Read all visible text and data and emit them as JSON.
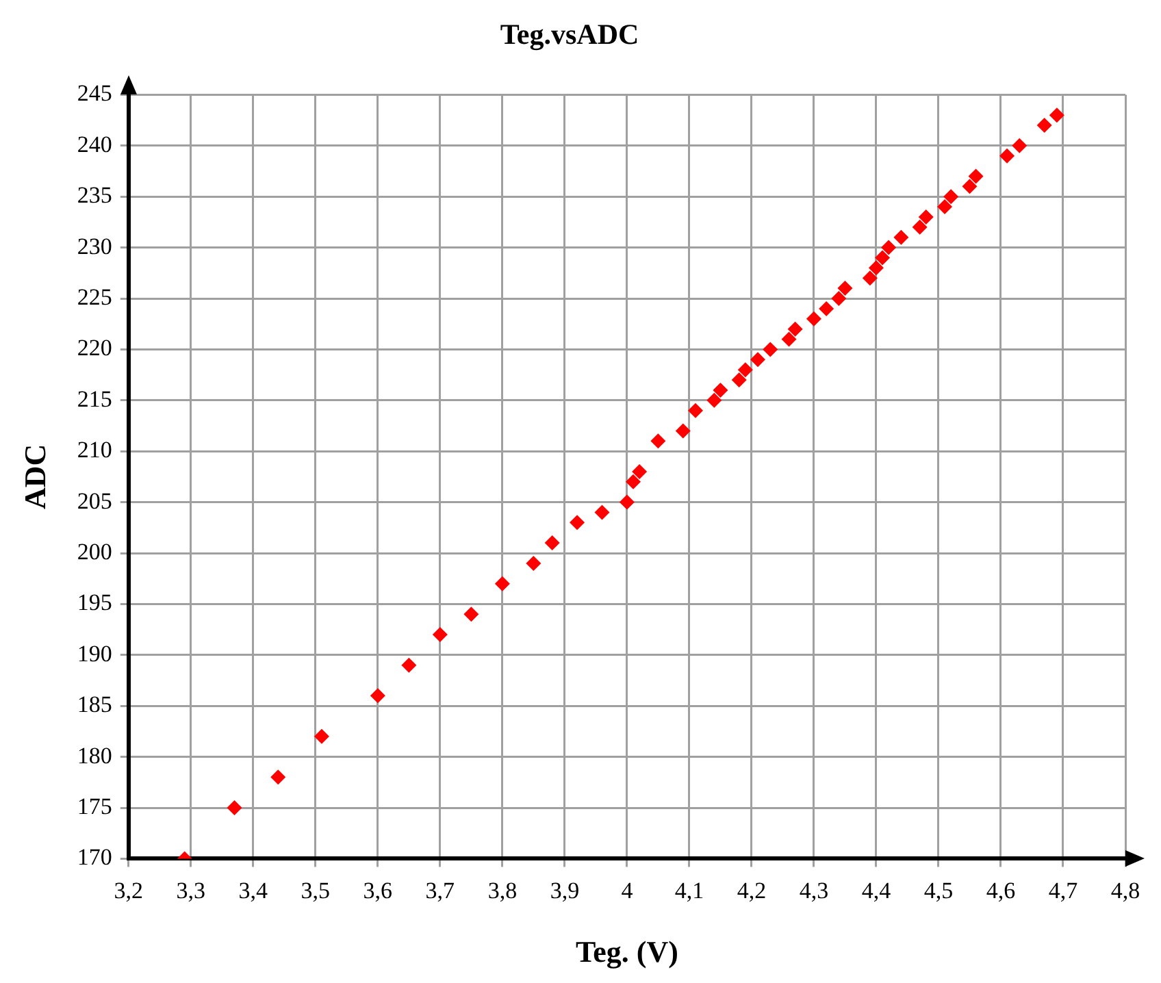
{
  "chart_data": {
    "type": "scatter",
    "title": "Teg.vsADC",
    "xlabel": "Teg. (V)",
    "ylabel": "ADC",
    "x": [
      3.29,
      3.37,
      3.44,
      3.51,
      3.6,
      3.65,
      3.7,
      3.75,
      3.8,
      3.85,
      3.88,
      3.92,
      3.96,
      4.0,
      4.01,
      4.02,
      4.05,
      4.09,
      4.11,
      4.14,
      4.15,
      4.18,
      4.19,
      4.21,
      4.23,
      4.26,
      4.27,
      4.3,
      4.32,
      4.34,
      4.35,
      4.39,
      4.4,
      4.41,
      4.42,
      4.44,
      4.47,
      4.48,
      4.51,
      4.52,
      4.55,
      4.56,
      4.61,
      4.63,
      4.67,
      4.69
    ],
    "series": [
      {
        "color": "#ff0000",
        "values": [
          170,
          175,
          178,
          182,
          186,
          189,
          192,
          194,
          197,
          199,
          201,
          203,
          204,
          205,
          207,
          208,
          211,
          212,
          214,
          215,
          216,
          217,
          218,
          219,
          220,
          221,
          222,
          223,
          224,
          225,
          226,
          227,
          228,
          229,
          230,
          231,
          232,
          233,
          234,
          235,
          236,
          237,
          239,
          240,
          242,
          243
        ]
      }
    ],
    "xlim": [
      3.2,
      4.8
    ],
    "xticks": [
      {
        "value": 3.2,
        "label": "3,2"
      },
      {
        "value": 3.3,
        "label": "3,3"
      },
      {
        "value": 3.4,
        "label": "3,4"
      },
      {
        "value": 3.5,
        "label": "3,5"
      },
      {
        "value": 3.6,
        "label": "3,6"
      },
      {
        "value": 3.7,
        "label": "3,7"
      },
      {
        "value": 3.8,
        "label": "3,8"
      },
      {
        "value": 3.9,
        "label": "3,9"
      },
      {
        "value": 4,
        "label": "4"
      },
      {
        "value": 4.1,
        "label": "4,1"
      },
      {
        "value": 4.2,
        "label": "4,2"
      },
      {
        "value": 4.3,
        "label": "4,3"
      },
      {
        "value": 4.4,
        "label": "4,4"
      },
      {
        "value": 4.5,
        "label": "4,5"
      },
      {
        "value": 4.6,
        "label": "4,6"
      },
      {
        "value": 4.7,
        "label": "4,7"
      },
      {
        "value": 4.8,
        "label": "4,8"
      }
    ],
    "ylim": [
      170,
      245
    ],
    "yticks": [
      170,
      175,
      180,
      185,
      190,
      195,
      200,
      205,
      210,
      215,
      220,
      225,
      230,
      235,
      240,
      245
    ],
    "grid": true,
    "legend": false,
    "marker": "diamond"
  }
}
